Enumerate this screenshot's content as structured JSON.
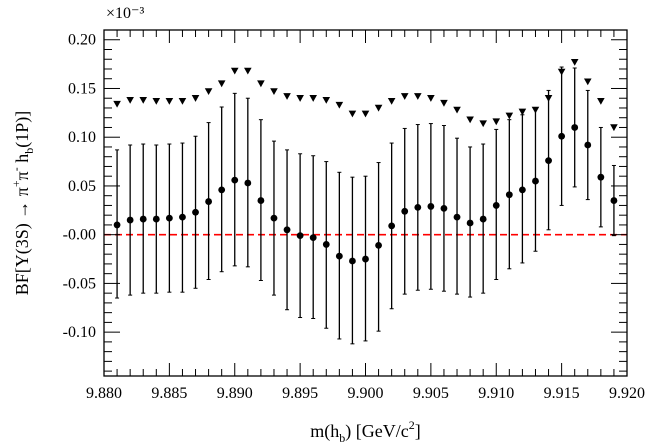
{
  "chart_data": {
    "type": "scatter",
    "title": "",
    "exponent_label": "×10⁻³",
    "xlabel": {
      "main": "m(h",
      "sub": "b",
      "rest": ") [GeV/c",
      "sup": "2",
      "end": "]"
    },
    "ylabel": {
      "p1": "BF[Υ(3S) → π",
      "sup1": "+",
      "p2": "π",
      "sup2": "-",
      "p3": " h",
      "sub1": "b",
      "p4": "(1P)]"
    },
    "xlim": [
      9.88,
      9.92
    ],
    "ylim": [
      -0.145,
      0.21
    ],
    "x_ticks": [
      "9.880",
      "9.885",
      "9.890",
      "9.895",
      "9.900",
      "9.905",
      "9.910",
      "9.915",
      "9.920"
    ],
    "y_ticks": [
      "-0.10",
      "-0.05",
      "-0.00",
      "0.05",
      "0.10",
      "0.15",
      "0.20"
    ],
    "reference_line": {
      "y": 0.0,
      "color": "#ff0000",
      "style": "dashed"
    },
    "series": [
      {
        "kind": "measurement",
        "marker": "circle",
        "color": "#000000",
        "x": [
          9.881,
          9.882,
          9.883,
          9.884,
          9.885,
          9.886,
          9.887,
          9.888,
          9.889,
          9.89,
          9.891,
          9.892,
          9.893,
          9.894,
          9.895,
          9.896,
          9.897,
          9.898,
          9.899,
          9.9,
          9.901,
          9.902,
          9.903,
          9.904,
          9.905,
          9.906,
          9.907,
          9.908,
          9.909,
          9.91,
          9.911,
          9.912,
          9.913,
          9.914,
          9.915,
          9.916,
          9.917,
          9.918,
          9.919
        ],
        "y": [
          0.01,
          0.015,
          0.016,
          0.016,
          0.017,
          0.018,
          0.023,
          0.034,
          0.046,
          0.056,
          0.053,
          0.035,
          0.017,
          0.005,
          -0.001,
          -0.003,
          -0.01,
          -0.022,
          -0.027,
          -0.025,
          -0.011,
          0.009,
          0.024,
          0.028,
          0.029,
          0.027,
          0.018,
          0.012,
          0.016,
          0.03,
          0.041,
          0.046,
          0.055,
          0.076,
          0.101,
          0.11,
          0.092,
          0.059,
          0.035
        ],
        "err_lo": [
          0.075,
          0.077,
          0.076,
          0.076,
          0.076,
          0.077,
          0.078,
          0.08,
          0.084,
          0.088,
          0.086,
          0.082,
          0.079,
          0.082,
          0.084,
          0.083,
          0.086,
          0.085,
          0.085,
          0.084,
          0.088,
          0.085,
          0.085,
          0.085,
          0.085,
          0.085,
          0.079,
          0.076,
          0.076,
          0.076,
          0.076,
          0.075,
          0.072,
          0.071,
          0.071,
          0.061,
          0.056,
          0.051,
          0.036
        ],
        "err_hi": [
          0.077,
          0.077,
          0.077,
          0.076,
          0.076,
          0.076,
          0.078,
          0.081,
          0.085,
          0.089,
          0.087,
          0.083,
          0.079,
          0.082,
          0.084,
          0.084,
          0.085,
          0.086,
          0.086,
          0.085,
          0.085,
          0.085,
          0.085,
          0.085,
          0.085,
          0.085,
          0.081,
          0.078,
          0.077,
          0.078,
          0.077,
          0.077,
          0.075,
          0.072,
          0.071,
          0.061,
          0.056,
          0.051,
          0.036
        ]
      },
      {
        "kind": "upper-limit",
        "marker": "triangle-down",
        "color": "#000000",
        "x": [
          9.881,
          9.882,
          9.883,
          9.884,
          9.885,
          9.886,
          9.887,
          9.888,
          9.889,
          9.89,
          9.891,
          9.892,
          9.893,
          9.894,
          9.895,
          9.896,
          9.897,
          9.898,
          9.899,
          9.9,
          9.901,
          9.902,
          9.903,
          9.904,
          9.905,
          9.906,
          9.907,
          9.908,
          9.909,
          9.91,
          9.911,
          9.912,
          9.913,
          9.914,
          9.915,
          9.916,
          9.917,
          9.918,
          9.919
        ],
        "y": [
          0.134,
          0.138,
          0.138,
          0.137,
          0.137,
          0.137,
          0.14,
          0.147,
          0.155,
          0.168,
          0.168,
          0.155,
          0.147,
          0.142,
          0.14,
          0.14,
          0.138,
          0.133,
          0.124,
          0.124,
          0.13,
          0.137,
          0.142,
          0.142,
          0.14,
          0.135,
          0.128,
          0.118,
          0.114,
          0.116,
          0.122,
          0.126,
          0.128,
          0.14,
          0.167,
          0.177,
          0.157,
          0.137,
          0.11
        ]
      }
    ]
  }
}
